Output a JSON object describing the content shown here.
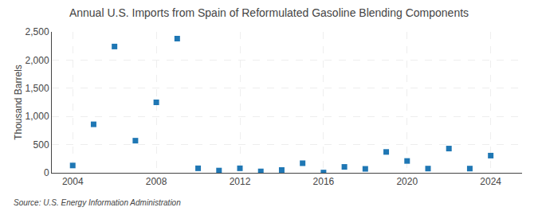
{
  "chart_data": {
    "type": "scatter",
    "title": "Annual U.S. Imports from Spain of Reformulated Gasoline Blending Components",
    "ylabel": "Thousand Barrels",
    "annotations": [
      "Source: U.S. Energy Information Administration"
    ],
    "marker": "square",
    "x": [
      2004,
      2005,
      2006,
      2007,
      2008,
      2009,
      2010,
      2011,
      2012,
      2013,
      2014,
      2015,
      2016,
      2017,
      2018,
      2019,
      2020,
      2021,
      2022,
      2023,
      2024
    ],
    "values": [
      130,
      860,
      2240,
      570,
      1250,
      2380,
      80,
      40,
      80,
      25,
      50,
      170,
      5,
      105,
      70,
      370,
      210,
      75,
      430,
      75,
      305
    ],
    "xlim": [
      2003.0,
      2025.5
    ],
    "xticks": [
      2004,
      2008,
      2012,
      2016,
      2020,
      2024
    ],
    "ylim": [
      0,
      2500
    ],
    "yticks": [
      0,
      500,
      {
        "value": 1000,
        "label": "1,000"
      },
      {
        "value": 1500,
        "label": "1,500"
      },
      {
        "value": 2000,
        "label": "2,000"
      },
      {
        "value": 2500,
        "label": "2,500"
      }
    ],
    "grid": true
  }
}
